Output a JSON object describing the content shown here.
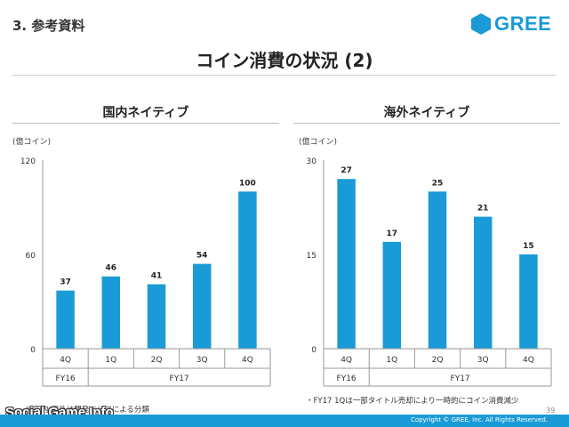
{
  "header": {
    "section": "3. 参考資料",
    "logo_text": "GREE",
    "title": "コイン消費の状況 (2)"
  },
  "colors": {
    "bar": "#1a9ad6",
    "brand": "#1a9ad6"
  },
  "chart_data": [
    {
      "type": "bar",
      "title": "国内ネイティブ",
      "ylabel": "(億コイン)",
      "categories": [
        "4Q",
        "1Q",
        "2Q",
        "3Q",
        "4Q"
      ],
      "groups": [
        {
          "label": "FY16",
          "span": 1
        },
        {
          "label": "FY17",
          "span": 4
        }
      ],
      "values": [
        37,
        46,
        41,
        54,
        100
      ],
      "ylim": [
        0,
        120
      ],
      "yticks": [
        "0",
        "60",
        "120"
      ]
    },
    {
      "type": "bar",
      "title": "海外ネイティブ",
      "ylabel": "(億コイン)",
      "categories": [
        "4Q",
        "1Q",
        "2Q",
        "3Q",
        "4Q"
      ],
      "groups": [
        {
          "label": "FY16",
          "span": 1
        },
        {
          "label": "FY17",
          "span": 4
        }
      ],
      "values": [
        27,
        17,
        25,
        21,
        15
      ],
      "ylim": [
        0,
        30
      ],
      "yticks": [
        "0",
        "15",
        "30"
      ]
    }
  ],
  "footnotes": {
    "left": "※ 国内/海外は開発エリアによる分類",
    "right": "・FY17 1Qは一部タイトル売却により一時的にコイン消費減少"
  },
  "watermark": "Social Game Info",
  "page_number": "39",
  "copyright": "Copyright © GREE, Inc. All Rights Reserved."
}
